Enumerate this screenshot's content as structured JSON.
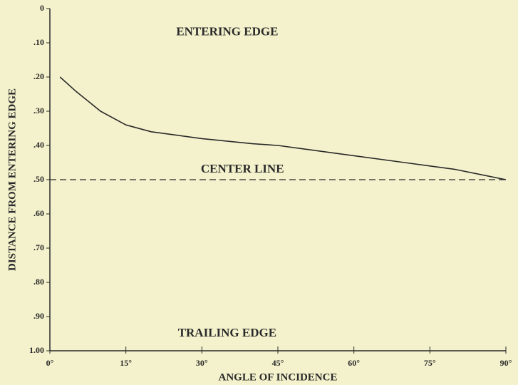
{
  "chart_data": {
    "type": "line",
    "x_label": "ANGLE OF INCIDENCE",
    "y_label": "DISTANCE FROM ENTERING EDGE",
    "x": [
      2,
      5,
      10,
      15,
      20,
      25,
      30,
      40,
      45,
      50,
      60,
      70,
      75,
      80,
      85,
      90
    ],
    "values": [
      0.2,
      0.24,
      0.3,
      0.34,
      0.36,
      0.37,
      0.38,
      0.395,
      0.4,
      0.41,
      0.43,
      0.45,
      0.46,
      0.47,
      0.485,
      0.5
    ],
    "color": "#2a2a2a",
    "xlim": [
      0,
      90
    ],
    "xticks": [
      {
        "value": 0,
        "label": "0°"
      },
      {
        "value": 15,
        "label": "15°"
      },
      {
        "value": 30,
        "label": "30°"
      },
      {
        "value": 45,
        "label": "45°"
      },
      {
        "value": 60,
        "label": "60°"
      },
      {
        "value": 75,
        "label": "75°"
      },
      {
        "value": 90,
        "label": "90°"
      }
    ],
    "ylim": [
      0,
      1
    ],
    "y_inverted": true,
    "yticks": [
      0,
      {
        "value": 0.1,
        "label": ".10"
      },
      {
        "value": 0.2,
        "label": ".20"
      },
      {
        "value": 0.3,
        "label": ".30"
      },
      {
        "value": 0.4,
        "label": ".40"
      },
      {
        "value": 0.5,
        "label": ".50"
      },
      {
        "value": 0.6,
        "label": ".60"
      },
      {
        "value": 0.7,
        "label": ".70"
      },
      {
        "value": 0.8,
        "label": ".80"
      },
      {
        "value": 0.9,
        "label": ".90"
      },
      {
        "value": 1,
        "label": "1.00"
      }
    ],
    "reference_line": {
      "label": "CENTER LINE",
      "value": 0.5
    },
    "annotations": [
      {
        "text": "ENTERING EDGE",
        "x": 35,
        "y": 0.07
      },
      {
        "text": "TRAILING EDGE",
        "x": 35,
        "y": 0.95
      }
    ]
  }
}
